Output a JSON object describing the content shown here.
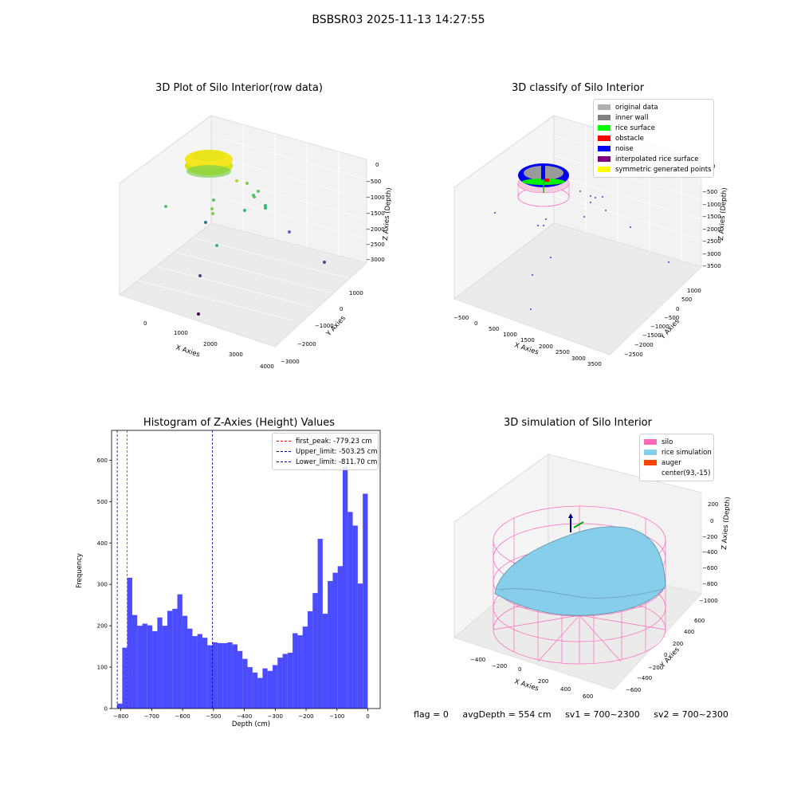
{
  "suptitle": "BSBSR03 2025-11-13 14:27:55",
  "panels": {
    "raw": {
      "title": "3D Plot of Silo Interior(row data)",
      "xlabel": "X Axies",
      "ylabel": "Y Axies",
      "zlabel": "Z Axies (Depth)",
      "xticks": [
        "0",
        "1000",
        "2000",
        "3000",
        "4000"
      ],
      "yticks": [
        "1000",
        "0",
        "−1000",
        "−2000",
        "−3000"
      ],
      "zticks": [
        "0",
        "−500",
        "−1000",
        "−1500",
        "−2000",
        "−2500",
        "−3000"
      ]
    },
    "classify": {
      "title": "3D classify of Silo Interior",
      "xlabel": "X Axies",
      "ylabel": "Y Axies",
      "zlabel": "Z Axies (Depth)",
      "xticks": [
        "−500",
        "0",
        "500",
        "1000",
        "1500",
        "2000",
        "2500",
        "3000",
        "3500"
      ],
      "yticks": [
        "1000",
        "500",
        "0",
        "−500",
        "−1000",
        "−1500",
        "−2000",
        "−2500"
      ],
      "zticks": [
        "0",
        "−500",
        "−1000",
        "−1500",
        "−2000",
        "−2500",
        "−3000",
        "−3500"
      ],
      "legend": [
        {
          "label": "original data",
          "color": "#b0b0b0"
        },
        {
          "label": "inner wall",
          "color": "#808080"
        },
        {
          "label": "rice surface",
          "color": "#00ff00"
        },
        {
          "label": "obstacle",
          "color": "#ff0000"
        },
        {
          "label": "noise",
          "color": "#0000ff"
        },
        {
          "label": "interpolated rice surface",
          "color": "#800080"
        },
        {
          "label": "symmetric generated points",
          "color": "#ffff00"
        }
      ]
    },
    "simulation": {
      "title": "3D simulation of Silo Interior",
      "xlabel": "X Axies",
      "ylabel": "Y Axies",
      "zlabel": "Z Axies (Depth)",
      "xticks": [
        "−400",
        "−200",
        "0",
        "200",
        "400",
        "600"
      ],
      "yticks": [
        "600",
        "400",
        "200",
        "0",
        "−200",
        "−400",
        "−600"
      ],
      "zticks": [
        "200",
        "0",
        "−200",
        "−400",
        "−600",
        "−800",
        "−1000"
      ],
      "legend": [
        {
          "label": "silo",
          "color": "#ff69b4"
        },
        {
          "label": "rice simulation",
          "color": "#87ceeb"
        },
        {
          "label": "auger",
          "color": "#ff4500"
        },
        {
          "label": "center(93,-15)",
          "color": "#ffffff"
        }
      ]
    }
  },
  "chart_data": {
    "type": "bar",
    "title": "Histogram of Z-Axies (Height) Values",
    "xlabel": "Depth (cm)",
    "ylabel": "Frequency",
    "xlim": [
      -830,
      40
    ],
    "ylim": [
      0,
      672
    ],
    "xticks": [
      -800,
      -700,
      -600,
      -500,
      -400,
      -300,
      -200,
      -100,
      0
    ],
    "yticks": [
      0,
      100,
      200,
      300,
      400,
      500,
      600
    ],
    "tick_labels_x": [
      "−800",
      "−700",
      "−600",
      "−500",
      "−400",
      "−300",
      "−200",
      "−100",
      "0"
    ],
    "bin_start": -811.7,
    "bin_width": 16.23,
    "values": [
      12,
      147,
      316,
      226,
      200,
      205,
      201,
      187,
      220,
      200,
      236,
      241,
      276,
      224,
      193,
      175,
      180,
      171,
      153,
      160,
      158,
      158,
      160,
      155,
      139,
      120,
      100,
      87,
      74,
      97,
      91,
      105,
      123,
      132,
      135,
      182,
      177,
      198,
      235,
      279,
      410,
      229,
      308,
      328,
      344,
      584,
      475,
      442,
      302,
      519
    ],
    "bar_color": "#0000ff",
    "lines": [
      {
        "label": "first_peak: -779.23 cm",
        "x": -779.23,
        "color": "#ff0000"
      },
      {
        "label": "Upper_limit: -503.25 cm",
        "x": -503.25,
        "color": "#0000aa"
      },
      {
        "label": "Lower_limit: -811.70 cm",
        "x": -811.7,
        "color": "#0000aa"
      }
    ]
  },
  "status": {
    "flag": "flag = 0",
    "avg_depth": "avgDepth = 554 cm",
    "sv1": "sv1 = 700~2300",
    "sv2": "sv2 = 700~2300"
  }
}
